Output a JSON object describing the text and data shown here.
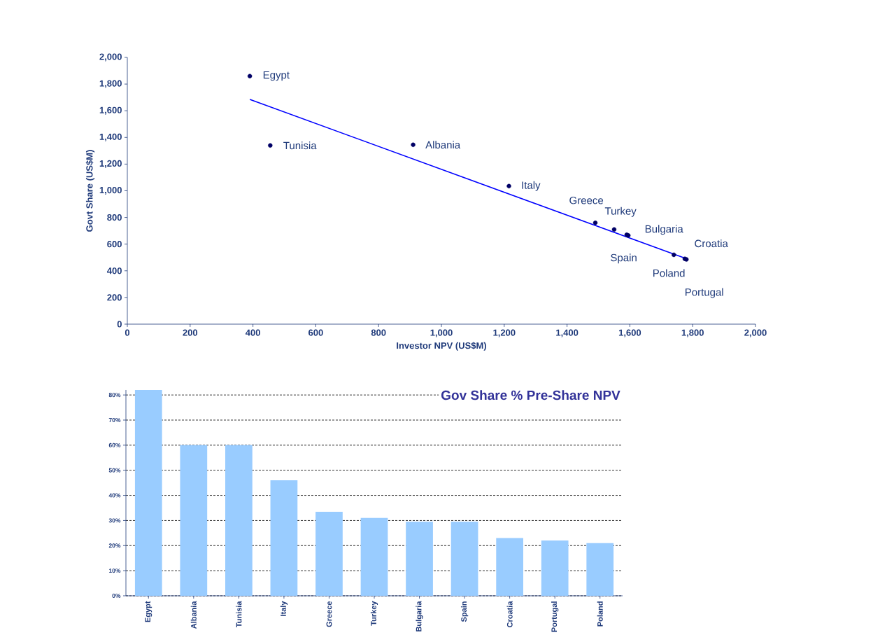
{
  "chart_data": [
    {
      "type": "scatter",
      "xlabel": "Investor NPV (US$M)",
      "ylabel": "Govt Share (US$M)",
      "xlim": [
        0,
        2000
      ],
      "ylim": [
        0,
        2000
      ],
      "xticks": [
        0,
        200,
        400,
        600,
        800,
        {
          "value": 1000,
          "label": "1,000"
        },
        {
          "value": 1200,
          "label": "1,200"
        },
        {
          "value": 1400,
          "label": "1,400"
        },
        {
          "value": 1600,
          "label": "1,600"
        },
        {
          "value": 1800,
          "label": "1,800"
        },
        {
          "value": 2000,
          "label": "2,000"
        }
      ],
      "yticks": [
        0,
        200,
        400,
        600,
        800,
        {
          "value": 1000,
          "label": "1,000"
        },
        {
          "value": 1200,
          "label": "1,200"
        },
        {
          "value": 1400,
          "label": "1,400"
        },
        {
          "value": 1600,
          "label": "1,600"
        },
        {
          "value": 1800,
          "label": "1,800"
        },
        {
          "value": 2000,
          "label": "2,000"
        }
      ],
      "marker": "circle",
      "grid": false,
      "series": [
        {
          "type": "scatter",
          "color": "#000066",
          "x": [
            390,
            455,
            910,
            1215,
            1490,
            1550,
            1595,
            1590,
            1775,
            1740,
            1780
          ],
          "values": [
            1860,
            1340,
            1345,
            1035,
            760,
            710,
            665,
            670,
            490,
            520,
            485
          ]
        },
        {
          "type": "line",
          "color": "#0000ff",
          "marker": "none",
          "x": [
            390,
            1777
          ],
          "values": [
            1685,
            493
          ]
        }
      ],
      "annotations": [
        {
          "text": "Egypt",
          "x": 390,
          "y": 1860
        },
        {
          "text": "Tunisia",
          "x": 455,
          "y": 1340
        },
        {
          "text": "Albania",
          "x": 910,
          "y": 1345
        },
        {
          "text": "Italy",
          "x": 1215,
          "y": 1035
        },
        {
          "text": "Greece",
          "x": 1490,
          "y": 760
        },
        {
          "text": "Turkey",
          "x": 1550,
          "y": 710
        },
        {
          "text": "Bulgaria",
          "x": 1595,
          "y": 665
        },
        {
          "text": "Croatia",
          "x": 1775,
          "y": 490
        },
        {
          "text": "Spain",
          "x": 1590,
          "y": 670
        },
        {
          "text": "Poland",
          "x": 1740,
          "y": 520
        },
        {
          "text": "Portugal",
          "x": 1780,
          "y": 485
        }
      ]
    },
    {
      "type": "bar",
      "title": "Gov Share % Pre-Share NPV",
      "categories": [
        "Egypt",
        "Albania",
        "Tunisia",
        "Italy",
        "Greece",
        "Turkey",
        "Bulgaria",
        "Spain",
        "Croatia",
        "Portugal",
        "Poland"
      ],
      "values": [
        82,
        60,
        60,
        46,
        33.5,
        31,
        29.5,
        29.5,
        23,
        22,
        21
      ],
      "color": "#99ccff",
      "ylim": [
        0,
        82
      ],
      "yticks": [
        {
          "value": 0,
          "label": "0%"
        },
        {
          "value": 10,
          "label": "10%"
        },
        {
          "value": 20,
          "label": "20%"
        },
        {
          "value": 30,
          "label": "30%"
        },
        {
          "value": 40,
          "label": "40%"
        },
        {
          "value": 50,
          "label": "50%"
        },
        {
          "value": 60,
          "label": "60%"
        },
        {
          "value": 70,
          "label": "70%"
        },
        {
          "value": 80,
          "label": "80%"
        }
      ],
      "grid": "y"
    }
  ]
}
